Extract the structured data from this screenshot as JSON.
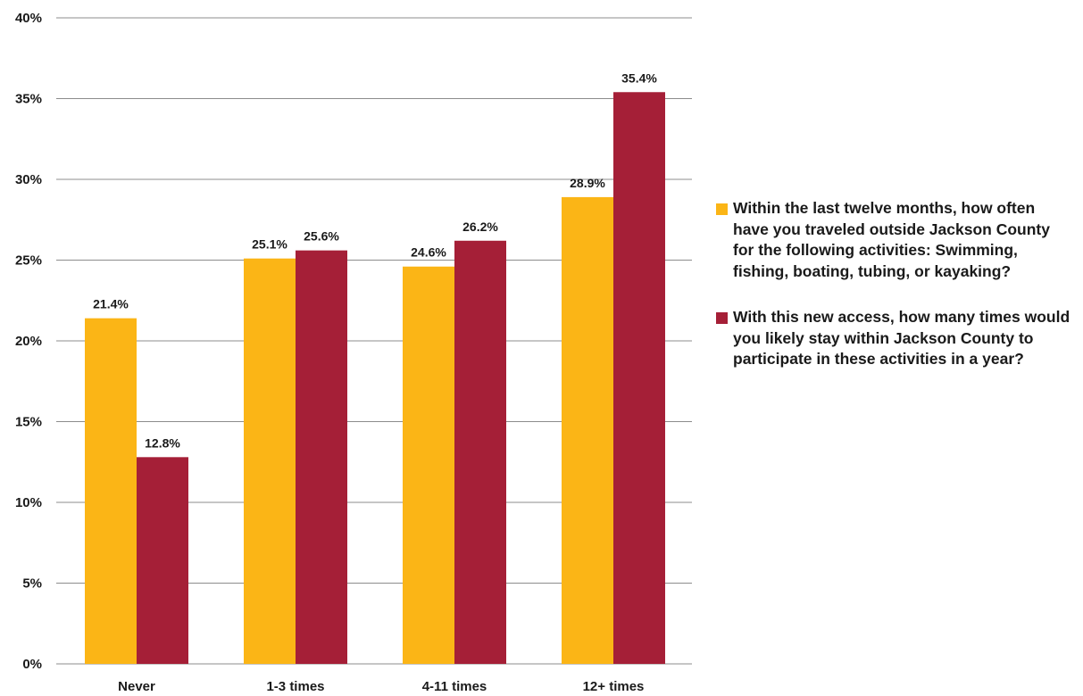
{
  "chart_data": {
    "type": "bar",
    "categories": [
      "Never",
      "1-3 times",
      "4-11 times",
      "12+ times"
    ],
    "series": [
      {
        "name": "Within the last twelve months, how often have you traveled outside Jackson County for the following activities: Swimming, fishing, boating, tubing, or kayaking?",
        "values": [
          21.4,
          25.1,
          24.6,
          28.9
        ],
        "labels": [
          "21.4%",
          "25.1%",
          "24.6%",
          "28.9%"
        ],
        "color": "#FBB516"
      },
      {
        "name": "With this new access, how many times would you likely stay within Jackson County to participate in these activities in a year?",
        "values": [
          12.8,
          25.6,
          26.2,
          35.4
        ],
        "labels": [
          "12.8%",
          "25.6%",
          "26.2%",
          "35.4%"
        ],
        "color": "#A51F37"
      }
    ],
    "y_ticks": [
      0,
      5,
      10,
      15,
      20,
      25,
      30,
      35,
      40
    ],
    "y_tick_labels": [
      "0%",
      "5%",
      "10%",
      "15%",
      "20%",
      "25%",
      "30%",
      "35%",
      "40%"
    ],
    "ylim": [
      0,
      40
    ],
    "grid": true,
    "legend_position": "right",
    "title": "",
    "xlabel": "",
    "ylabel": ""
  }
}
